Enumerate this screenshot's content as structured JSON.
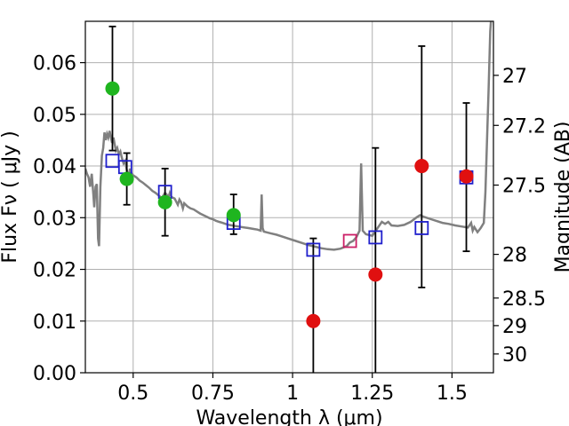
{
  "chart_data": {
    "type": "scatter",
    "title": "",
    "xlabel": "Wavelength  λ (μm)",
    "ylabel": "Flux  Fν  ( μJy )",
    "y2label": "Magnitude (AB)",
    "xlim": [
      0.35,
      1.63
    ],
    "ylim": [
      0.0,
      0.068
    ],
    "grid": true,
    "x_ticks": [
      0.5,
      0.75,
      1.0,
      1.25,
      1.5
    ],
    "x_tick_labels": [
      "0.5",
      "0.75",
      "1",
      "1.25",
      "1.5"
    ],
    "y_ticks": [
      0.0,
      0.01,
      0.02,
      0.03,
      0.04,
      0.05,
      0.06
    ],
    "y_tick_labels": [
      "0.00",
      "0.01",
      "0.02",
      "0.03",
      "0.04",
      "0.05",
      "0.06"
    ],
    "y2_ticks": [
      {
        "label": "27",
        "mag": 27.0
      },
      {
        "label": "27.2",
        "mag": 27.2
      },
      {
        "label": "27.5",
        "mag": 27.5
      },
      {
        "label": "28",
        "mag": 28.0
      },
      {
        "label": "28.5",
        "mag": 28.5
      },
      {
        "label": "29",
        "mag": 29.0
      },
      {
        "label": "30",
        "mag": 30.0
      }
    ],
    "colors": {
      "model": "#808080",
      "box": "#1f1fcc",
      "box_alt": "#cc1f66",
      "green": "#1fb51f",
      "red": "#e01010",
      "errorbar": "#000000",
      "grid": "#b0b0b0"
    },
    "model_spectrum": [
      [
        0.35,
        0.0395
      ],
      [
        0.355,
        0.0385
      ],
      [
        0.36,
        0.0378
      ],
      [
        0.365,
        0.036
      ],
      [
        0.37,
        0.0385
      ],
      [
        0.375,
        0.0345
      ],
      [
        0.378,
        0.032
      ],
      [
        0.382,
        0.036
      ],
      [
        0.386,
        0.0365
      ],
      [
        0.39,
        0.026
      ],
      [
        0.393,
        0.0245
      ],
      [
        0.397,
        0.036
      ],
      [
        0.402,
        0.042
      ],
      [
        0.406,
        0.0435
      ],
      [
        0.41,
        0.0465
      ],
      [
        0.414,
        0.045
      ],
      [
        0.418,
        0.0462
      ],
      [
        0.422,
        0.0455
      ],
      [
        0.426,
        0.0468
      ],
      [
        0.43,
        0.0455
      ],
      [
        0.434,
        0.0445
      ],
      [
        0.438,
        0.0455
      ],
      [
        0.442,
        0.0442
      ],
      [
        0.446,
        0.043
      ],
      [
        0.45,
        0.0435
      ],
      [
        0.455,
        0.0422
      ],
      [
        0.46,
        0.0428
      ],
      [
        0.465,
        0.0415
      ],
      [
        0.47,
        0.0405
      ],
      [
        0.475,
        0.041
      ],
      [
        0.48,
        0.0392
      ],
      [
        0.486,
        0.0378
      ],
      [
        0.49,
        0.0395
      ],
      [
        0.495,
        0.0385
      ],
      [
        0.5,
        0.0382
      ],
      [
        0.51,
        0.0378
      ],
      [
        0.52,
        0.0372
      ],
      [
        0.53,
        0.0368
      ],
      [
        0.54,
        0.0363
      ],
      [
        0.55,
        0.0358
      ],
      [
        0.56,
        0.0352
      ],
      [
        0.57,
        0.0348
      ],
      [
        0.58,
        0.0343
      ],
      [
        0.59,
        0.0338
      ],
      [
        0.6,
        0.0348
      ],
      [
        0.605,
        0.0345
      ],
      [
        0.61,
        0.0338
      ],
      [
        0.615,
        0.0348
      ],
      [
        0.62,
        0.034
      ],
      [
        0.63,
        0.0337
      ],
      [
        0.64,
        0.0325
      ],
      [
        0.645,
        0.0335
      ],
      [
        0.65,
        0.033
      ],
      [
        0.656,
        0.0318
      ],
      [
        0.66,
        0.0328
      ],
      [
        0.67,
        0.0322
      ],
      [
        0.68,
        0.0318
      ],
      [
        0.69,
        0.0316
      ],
      [
        0.7,
        0.0312
      ],
      [
        0.71,
        0.0308
      ],
      [
        0.72,
        0.0305
      ],
      [
        0.73,
        0.0302
      ],
      [
        0.74,
        0.0299
      ],
      [
        0.75,
        0.0297
      ],
      [
        0.76,
        0.0294
      ],
      [
        0.77,
        0.0292
      ],
      [
        0.78,
        0.029
      ],
      [
        0.79,
        0.0288
      ],
      [
        0.8,
        0.0286
      ],
      [
        0.81,
        0.0285
      ],
      [
        0.82,
        0.0284
      ],
      [
        0.83,
        0.0283
      ],
      [
        0.84,
        0.0282
      ],
      [
        0.85,
        0.0281
      ],
      [
        0.86,
        0.028
      ],
      [
        0.87,
        0.0279
      ],
      [
        0.88,
        0.0278
      ],
      [
        0.89,
        0.0277
      ],
      [
        0.895,
        0.0276
      ],
      [
        0.9,
        0.0275
      ],
      [
        0.903,
        0.0345
      ],
      [
        0.906,
        0.028
      ],
      [
        0.91,
        0.0273
      ],
      [
        0.93,
        0.027
      ],
      [
        0.95,
        0.0267
      ],
      [
        0.97,
        0.0263
      ],
      [
        0.99,
        0.0259
      ],
      [
        1.01,
        0.0255
      ],
      [
        1.03,
        0.0251
      ],
      [
        1.05,
        0.0247
      ],
      [
        1.07,
        0.0244
      ],
      [
        1.09,
        0.0241
      ],
      [
        1.11,
        0.0239
      ],
      [
        1.13,
        0.0238
      ],
      [
        1.15,
        0.024
      ],
      [
        1.17,
        0.0245
      ],
      [
        1.18,
        0.0252
      ],
      [
        1.19,
        0.0255
      ],
      [
        1.2,
        0.0262
      ],
      [
        1.21,
        0.0275
      ],
      [
        1.215,
        0.0405
      ],
      [
        1.22,
        0.0275
      ],
      [
        1.23,
        0.0268
      ],
      [
        1.25,
        0.0265
      ],
      [
        1.27,
        0.0283
      ],
      [
        1.28,
        0.0292
      ],
      [
        1.29,
        0.0288
      ],
      [
        1.3,
        0.0292
      ],
      [
        1.31,
        0.0285
      ],
      [
        1.33,
        0.0284
      ],
      [
        1.35,
        0.0286
      ],
      [
        1.37,
        0.0292
      ],
      [
        1.39,
        0.0301
      ],
      [
        1.4,
        0.0305
      ],
      [
        1.41,
        0.0302
      ],
      [
        1.43,
        0.0298
      ],
      [
        1.45,
        0.0294
      ],
      [
        1.47,
        0.029
      ],
      [
        1.49,
        0.0288
      ],
      [
        1.51,
        0.0285
      ],
      [
        1.53,
        0.0283
      ],
      [
        1.55,
        0.0281
      ],
      [
        1.56,
        0.029
      ],
      [
        1.565,
        0.0275
      ],
      [
        1.57,
        0.0282
      ],
      [
        1.58,
        0.0272
      ],
      [
        1.59,
        0.028
      ],
      [
        1.6,
        0.029
      ],
      [
        1.605,
        0.035
      ],
      [
        1.61,
        0.045
      ],
      [
        1.615,
        0.055
      ],
      [
        1.62,
        0.066
      ],
      [
        1.63,
        0.075
      ]
    ],
    "photometry_boxes": [
      {
        "x": 0.435,
        "y": 0.041,
        "color": "box"
      },
      {
        "x": 0.475,
        "y": 0.0398,
        "color": "box"
      },
      {
        "x": 0.6,
        "y": 0.035,
        "color": "box"
      },
      {
        "x": 0.815,
        "y": 0.029,
        "color": "box"
      },
      {
        "x": 1.065,
        "y": 0.0238,
        "color": "box"
      },
      {
        "x": 1.18,
        "y": 0.0255,
        "color": "box_alt"
      },
      {
        "x": 1.26,
        "y": 0.0262,
        "color": "box"
      },
      {
        "x": 1.405,
        "y": 0.028,
        "color": "box"
      },
      {
        "x": 1.545,
        "y": 0.0378,
        "color": "box"
      }
    ],
    "detections": [
      {
        "x": 0.435,
        "y": 0.055,
        "yerr_low": 0.0,
        "yerr_high": 0.0,
        "color": "green"
      },
      {
        "x": 0.435,
        "y": 0.0,
        "yerr_low": 0.0,
        "yerr_high": 0.0,
        "color": "none",
        "errbar": [
          0.043,
          0.067
        ]
      },
      {
        "x": 0.48,
        "y": 0.0375,
        "errbar": [
          0.0325,
          0.0425
        ],
        "color": "green"
      },
      {
        "x": 0.6,
        "y": 0.033,
        "errbar": [
          0.0265,
          0.0395
        ],
        "color": "green"
      },
      {
        "x": 0.815,
        "y": 0.0305,
        "errbar": [
          0.0268,
          0.0345
        ],
        "color": "green"
      },
      {
        "x": 1.065,
        "y": 0.01,
        "errbar": [
          0.0,
          0.026
        ],
        "color": "red"
      },
      {
        "x": 1.26,
        "y": 0.019,
        "errbar": [
          0.0,
          0.0435
        ],
        "color": "red"
      },
      {
        "x": 1.405,
        "y": 0.04,
        "errbar": [
          0.0165,
          0.0632
        ],
        "color": "red"
      },
      {
        "x": 1.545,
        "y": 0.038,
        "errbar": [
          0.0235,
          0.0522
        ],
        "color": "red"
      }
    ]
  }
}
